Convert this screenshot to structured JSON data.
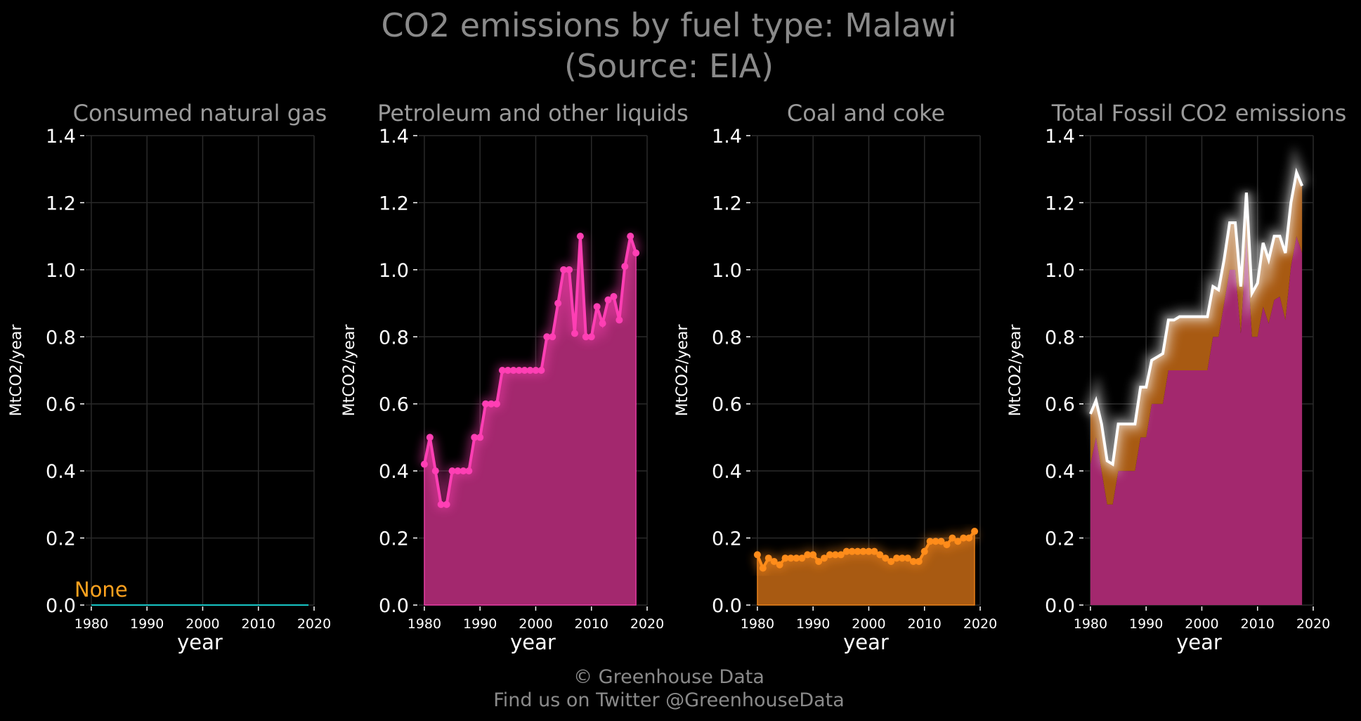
{
  "title_line1": "CO2 emissions by fuel type: Malawi",
  "title_line2": "(Source: EIA)",
  "footer_line1": "© Greenhouse Data",
  "footer_line2": "Find us on Twitter @GreenhouseData",
  "colors": {
    "background": "#000000",
    "grid": "#2a2a2a",
    "gas": "#17c5c5",
    "petroleum": "#ff3fb4",
    "petroleum_fill": "#a3286e",
    "coal": "#ff8c1a",
    "coal_fill": "#a85a12",
    "total": "#ffffff",
    "none_label": "#ffa21e"
  },
  "chart_data": [
    {
      "type": "line",
      "title": "Consumed natural gas",
      "xlabel": "year",
      "ylabel": "MtCO2/year",
      "xlim": [
        1979,
        2020
      ],
      "ylim": [
        0,
        1.4
      ],
      "xticks": [
        1980,
        1990,
        2000,
        2010,
        2020
      ],
      "yticks": [
        0.0,
        0.2,
        0.4,
        0.6,
        0.8,
        1.0,
        1.2,
        1.4
      ],
      "grid": true,
      "annotation": "None",
      "x": [
        1980,
        2019
      ],
      "series": [
        {
          "values": [
            0,
            0
          ]
        }
      ]
    },
    {
      "type": "area",
      "title": "Petroleum and other liquids",
      "xlabel": "year",
      "ylabel": "MtCO2/year",
      "xlim": [
        1979,
        2020
      ],
      "ylim": [
        0,
        1.4
      ],
      "xticks": [
        1980,
        1990,
        2000,
        2010,
        2020
      ],
      "yticks": [
        0.0,
        0.2,
        0.4,
        0.6,
        0.8,
        1.0,
        1.2,
        1.4
      ],
      "grid": true,
      "x": [
        1980,
        1981,
        1982,
        1983,
        1984,
        1985,
        1986,
        1987,
        1988,
        1989,
        1990,
        1991,
        1992,
        1993,
        1994,
        1995,
        1996,
        1997,
        1998,
        1999,
        2000,
        2001,
        2002,
        2003,
        2004,
        2005,
        2006,
        2007,
        2008,
        2009,
        2010,
        2011,
        2012,
        2013,
        2014,
        2015,
        2016,
        2017,
        2018
      ],
      "series": [
        {
          "values": [
            0.42,
            0.5,
            0.4,
            0.3,
            0.3,
            0.4,
            0.4,
            0.4,
            0.4,
            0.5,
            0.5,
            0.6,
            0.6,
            0.6,
            0.7,
            0.7,
            0.7,
            0.7,
            0.7,
            0.7,
            0.7,
            0.7,
            0.8,
            0.8,
            0.9,
            1.0,
            1.0,
            0.81,
            1.1,
            0.8,
            0.8,
            0.89,
            0.84,
            0.91,
            0.92,
            0.85,
            1.01,
            1.1,
            1.05
          ]
        }
      ]
    },
    {
      "type": "area",
      "title": "Coal and coke",
      "xlabel": "year",
      "ylabel": "MtCO2/year",
      "xlim": [
        1979,
        2020
      ],
      "ylim": [
        0,
        1.4
      ],
      "xticks": [
        1980,
        1990,
        2000,
        2010,
        2020
      ],
      "yticks": [
        0.0,
        0.2,
        0.4,
        0.6,
        0.8,
        1.0,
        1.2,
        1.4
      ],
      "grid": true,
      "x": [
        1980,
        1981,
        1982,
        1983,
        1984,
        1985,
        1986,
        1987,
        1988,
        1989,
        1990,
        1991,
        1992,
        1993,
        1994,
        1995,
        1996,
        1997,
        1998,
        1999,
        2000,
        2001,
        2002,
        2003,
        2004,
        2005,
        2006,
        2007,
        2008,
        2009,
        2010,
        2011,
        2012,
        2013,
        2014,
        2015,
        2016,
        2017,
        2018,
        2019
      ],
      "series": [
        {
          "values": [
            0.15,
            0.11,
            0.14,
            0.13,
            0.12,
            0.14,
            0.14,
            0.14,
            0.14,
            0.15,
            0.15,
            0.13,
            0.14,
            0.15,
            0.15,
            0.15,
            0.16,
            0.16,
            0.16,
            0.16,
            0.16,
            0.16,
            0.15,
            0.14,
            0.13,
            0.14,
            0.14,
            0.14,
            0.13,
            0.13,
            0.16,
            0.19,
            0.19,
            0.19,
            0.18,
            0.2,
            0.19,
            0.2,
            0.2,
            0.22
          ]
        }
      ]
    },
    {
      "type": "area",
      "title": "Total Fossil CO2 emissions",
      "xlabel": "year",
      "ylabel": "MtCO2/year",
      "xlim": [
        1979,
        2020
      ],
      "ylim": [
        0,
        1.4
      ],
      "xticks": [
        1980,
        1990,
        2000,
        2010,
        2020
      ],
      "yticks": [
        0.0,
        0.2,
        0.4,
        0.6,
        0.8,
        1.0,
        1.2,
        1.4
      ],
      "grid": true,
      "x": [
        1980,
        1981,
        1982,
        1983,
        1984,
        1985,
        1986,
        1987,
        1988,
        1989,
        1990,
        1991,
        1992,
        1993,
        1994,
        1995,
        1996,
        1997,
        1998,
        1999,
        2000,
        2001,
        2002,
        2003,
        2004,
        2005,
        2006,
        2007,
        2008,
        2009,
        2010,
        2011,
        2012,
        2013,
        2014,
        2015,
        2016,
        2017,
        2018
      ],
      "series": [
        {
          "values": [
            0.42,
            0.5,
            0.4,
            0.3,
            0.3,
            0.4,
            0.4,
            0.4,
            0.4,
            0.5,
            0.5,
            0.6,
            0.6,
            0.6,
            0.7,
            0.7,
            0.7,
            0.7,
            0.7,
            0.7,
            0.7,
            0.7,
            0.8,
            0.8,
            0.9,
            1.0,
            1.0,
            0.81,
            1.1,
            0.8,
            0.8,
            0.89,
            0.84,
            0.91,
            0.92,
            0.85,
            1.01,
            1.1,
            1.05
          ]
        },
        {
          "values": [
            0.15,
            0.11,
            0.14,
            0.13,
            0.12,
            0.14,
            0.14,
            0.14,
            0.14,
            0.15,
            0.15,
            0.13,
            0.14,
            0.15,
            0.15,
            0.15,
            0.16,
            0.16,
            0.16,
            0.16,
            0.16,
            0.16,
            0.15,
            0.14,
            0.13,
            0.14,
            0.14,
            0.14,
            0.13,
            0.13,
            0.16,
            0.19,
            0.19,
            0.19,
            0.18,
            0.2,
            0.19,
            0.2,
            0.2
          ]
        },
        {
          "values": [
            0.57,
            0.61,
            0.54,
            0.43,
            0.42,
            0.54,
            0.54,
            0.54,
            0.54,
            0.65,
            0.65,
            0.73,
            0.74,
            0.75,
            0.85,
            0.85,
            0.86,
            0.86,
            0.86,
            0.86,
            0.86,
            0.86,
            0.95,
            0.94,
            1.03,
            1.14,
            1.14,
            0.95,
            1.23,
            0.93,
            0.96,
            1.08,
            1.03,
            1.1,
            1.1,
            1.05,
            1.2,
            1.29,
            1.25
          ]
        }
      ]
    }
  ]
}
